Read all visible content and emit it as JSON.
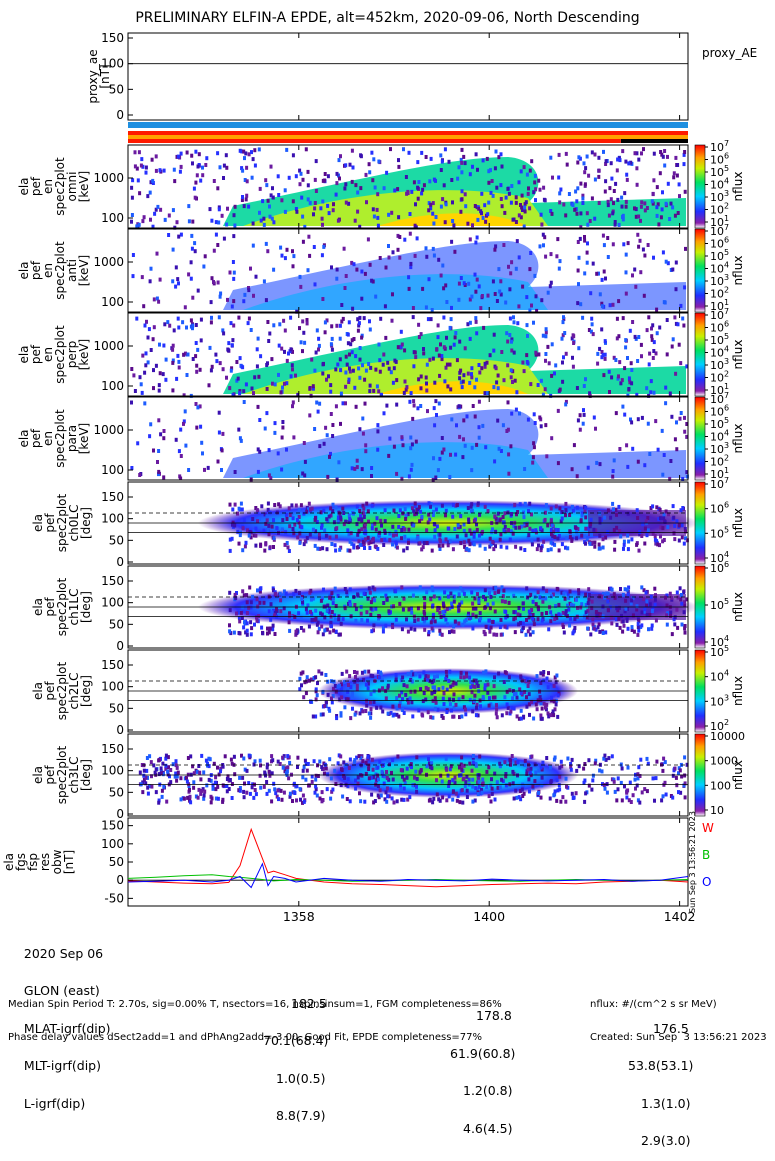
{
  "title": "PRELIMINARY ELFIN-A EPDE, alt=452km, 2020-09-06, North Descending",
  "proxy_panel": {
    "ylabel": [
      "proxy_ae",
      "[nT]"
    ],
    "yticks": [
      "150",
      "100",
      "50",
      "0"
    ],
    "legend": "proxy_AE"
  },
  "status_bars": {
    "blue_color": "#1e8fe0",
    "red_color": "#ff1a00",
    "orange_color": "#ffa200",
    "black_color": "#000000",
    "black_segment_start_fraction": 0.88
  },
  "energy_panels": [
    {
      "ylabel": [
        "ela",
        "pef",
        "en",
        "spec2plot",
        "omni",
        "[keV]"
      ],
      "yticks": [
        "1000",
        "100"
      ],
      "cbar_ticks": [
        "10^7",
        "10^6",
        "10^5",
        "10^4",
        "10^3",
        "10^2",
        "10^1"
      ],
      "cbar_label": "nflux"
    },
    {
      "ylabel": [
        "ela",
        "pef",
        "en",
        "spec2plot",
        "anti",
        "[keV]"
      ],
      "yticks": [
        "1000",
        "100"
      ],
      "cbar_ticks": [
        "10^7",
        "10^6",
        "10^5",
        "10^4",
        "10^3",
        "10^2",
        "10^1"
      ],
      "cbar_label": "nflux"
    },
    {
      "ylabel": [
        "ela",
        "pef",
        "en",
        "spec2plot",
        "perp",
        "[keV]"
      ],
      "yticks": [
        "1000",
        "100"
      ],
      "cbar_ticks": [
        "10^7",
        "10^6",
        "10^5",
        "10^4",
        "10^3",
        "10^2",
        "10^1"
      ],
      "cbar_label": "nflux"
    },
    {
      "ylabel": [
        "ela",
        "pef",
        "en",
        "spec2plot",
        "para",
        "[keV]"
      ],
      "yticks": [
        "1000",
        "100"
      ],
      "cbar_ticks": [
        "10^7",
        "10^6",
        "10^5",
        "10^4",
        "10^3",
        "10^2",
        "10^1"
      ],
      "cbar_label": "nflux"
    }
  ],
  "pa_panels": [
    {
      "ylabel": [
        "ela",
        "pef",
        "spec2plot",
        "ch0LC",
        "[deg]"
      ],
      "yticks": [
        "150",
        "100",
        "50",
        "0"
      ],
      "cbar_ticks": [
        "10^7",
        "10^6",
        "10^5",
        "10^4"
      ],
      "cbar_label": "nflux"
    },
    {
      "ylabel": [
        "ela",
        "pef",
        "spec2plot",
        "ch1LC",
        "[deg]"
      ],
      "yticks": [
        "150",
        "100",
        "50",
        "0"
      ],
      "cbar_ticks": [
        "10^6",
        "10^5",
        "10^4"
      ],
      "cbar_label": "nflux"
    },
    {
      "ylabel": [
        "ela",
        "pef",
        "spec2plot",
        "ch2LC",
        "[deg]"
      ],
      "yticks": [
        "150",
        "100",
        "50",
        "0"
      ],
      "cbar_ticks": [
        "10^5",
        "10^4",
        "10^3",
        "10^2"
      ],
      "cbar_label": "nflux"
    },
    {
      "ylabel": [
        "ela",
        "pef",
        "spec2plot",
        "ch3LC",
        "[deg]"
      ],
      "yticks": [
        "150",
        "100",
        "50",
        "0"
      ],
      "cbar_ticks": [
        "10000",
        "1000",
        "100",
        "10"
      ],
      "cbar_label": "nflux"
    }
  ],
  "mag_panel": {
    "ylabel": [
      "ela",
      "fgs",
      "fsp",
      "res",
      "obw",
      "[nT]"
    ],
    "yticks": [
      "150",
      "100",
      "50",
      "0",
      "-50"
    ],
    "legend": [
      {
        "name": "W",
        "color": "#ff0000"
      },
      {
        "name": "B",
        "color": "#00c000"
      },
      {
        "name": "O",
        "color": "#0000ff"
      }
    ],
    "side_stamp": "Sun Sep  3 13:56:21 2023",
    "chart_data": {
      "type": "line",
      "x_time_fraction": [
        0.0,
        0.05,
        0.1,
        0.15,
        0.18,
        0.2,
        0.22,
        0.24,
        0.25,
        0.26,
        0.28,
        0.3,
        0.35,
        0.4,
        0.45,
        0.5,
        0.55,
        0.6,
        0.65,
        0.7,
        0.75,
        0.8,
        0.85,
        0.9,
        0.95,
        1.0
      ],
      "series": [
        {
          "name": "W",
          "color": "#ff0000",
          "values": [
            -2,
            -5,
            -8,
            -10,
            -6,
            40,
            140,
            60,
            20,
            25,
            15,
            5,
            -5,
            -10,
            -12,
            -15,
            -18,
            -15,
            -12,
            -10,
            -8,
            -10,
            -5,
            -3,
            0,
            -5
          ]
        },
        {
          "name": "B",
          "color": "#00c000",
          "values": [
            5,
            8,
            12,
            15,
            10,
            8,
            5,
            2,
            0,
            -2,
            0,
            2,
            0,
            -3,
            -2,
            0,
            2,
            0,
            -2,
            -3,
            0,
            2,
            0,
            -2,
            0,
            2
          ]
        },
        {
          "name": "O",
          "color": "#0000ff",
          "values": [
            -5,
            -3,
            0,
            -5,
            0,
            10,
            -20,
            45,
            -15,
            10,
            5,
            -5,
            5,
            0,
            -3,
            2,
            0,
            -2,
            3,
            0,
            -2,
            0,
            2,
            -3,
            0,
            10
          ]
        }
      ],
      "ylim": [
        -60,
        160
      ]
    }
  },
  "time_axis": {
    "ticks": [
      {
        "frac": 0.305,
        "label": "1358"
      },
      {
        "frac": 0.645,
        "label": "1400"
      },
      {
        "frac": 0.985,
        "label": "1402"
      }
    ]
  },
  "orbit_table": {
    "rows": [
      {
        "label": "2020 Sep 06",
        "values": [
          "",
          "",
          ""
        ]
      },
      {
        "label": "GLON (east)",
        "values": [
          "182.5",
          "178.8",
          "176.5"
        ]
      },
      {
        "label": "MLAT-igrf(dip)",
        "values": [
          "70.1(68.4)",
          "61.9(60.8)",
          "53.8(53.1)"
        ]
      },
      {
        "label": "MLT-igrf(dip)",
        "values": [
          "1.0(0.5)",
          "1.2(0.8)",
          "1.3(1.0)"
        ]
      },
      {
        "label": "L-igrf(dip)",
        "values": [
          "8.8(7.9)",
          "4.6(4.5)",
          "2.9(3.0)"
        ]
      }
    ]
  },
  "footer": {
    "left_line1": "Median Spin Period T: 2.70s, sig=0.00% T, nsectors=16, nspinsinsum=1, FGM completeness=86%",
    "left_line2": "Phase delay values dSect2add=1 and dPhAng2add=-3.00, Good Fit, EPDE completeness=77%",
    "right_line1": "nflux: #/(cm^2 s sr MeV)",
    "right_line2": "Created: Sun Sep  3 13:56:21 2023"
  }
}
